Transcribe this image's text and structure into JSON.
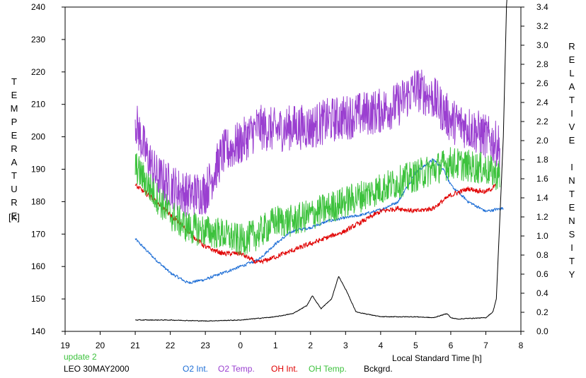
{
  "chart_data": {
    "type": "line",
    "ylabel_left": "TEMPERATURE",
    "ylabel_left_unit": "[K]",
    "ylabel_right": "RELATIVE INTENSITY",
    "xlabel": "Local Standard Time [h]",
    "xlim": [
      19,
      8
    ],
    "x_tick_labels": [
      "19",
      "20",
      "21",
      "22",
      "23",
      "0",
      "1",
      "2",
      "3",
      "4",
      "5",
      "6",
      "7",
      "8"
    ],
    "ylim_left": [
      140,
      240
    ],
    "y_left_ticks": [
      140,
      150,
      160,
      170,
      180,
      190,
      200,
      210,
      220,
      230,
      240
    ],
    "ylim_right": [
      0.0,
      3.4
    ],
    "y_right_tick_labels": [
      "0.0",
      "0.2",
      "0.4",
      "0.6",
      "0.8",
      "1.0",
      "1.2",
      "1.4",
      "1.6",
      "1.8",
      "2.0",
      "2.2",
      "2.4",
      "2.6",
      "2.8",
      "3.0",
      "3.2",
      "3.4"
    ],
    "grid": false,
    "footer": {
      "status": "update 2",
      "site_date": "LEO 30MAY2000"
    },
    "series": [
      {
        "name": "O2 Int.",
        "color": "#1f6fd6",
        "axis": "left",
        "noise": 0.6,
        "x": [
          21.0,
          21.5,
          22.0,
          22.5,
          23.0,
          23.5,
          24.0,
          24.5,
          25.0,
          25.5,
          26.0,
          26.5,
          27.0,
          27.5,
          28.0,
          28.5,
          29.0,
          29.5,
          29.8,
          30.0,
          30.5,
          31.0,
          31.5
        ],
        "y": [
          168.5,
          163,
          158,
          155,
          156,
          158,
          160,
          162,
          167,
          171,
          172,
          174,
          175,
          176,
          177.5,
          180,
          189,
          193,
          190,
          185,
          180,
          177,
          178
        ]
      },
      {
        "name": "O2 Temp.",
        "color": "#9a3fd0",
        "axis": "left",
        "noise": 7,
        "x": [
          21.0,
          21.3,
          21.6,
          22.0,
          22.5,
          23.0,
          23.5,
          24.0,
          24.5,
          25.0,
          25.5,
          26.0,
          26.5,
          27.0,
          27.5,
          28.0,
          28.5,
          29.0,
          29.5,
          30.0,
          30.5,
          31.0,
          31.4
        ],
        "y": [
          205,
          195,
          188,
          185,
          182,
          183,
          195,
          198,
          203,
          202,
          203,
          203,
          205,
          206,
          207,
          208,
          210,
          215,
          212,
          205,
          203,
          200,
          197
        ]
      },
      {
        "name": "OH Int.",
        "color": "#e00000",
        "axis": "left",
        "noise": 1,
        "x": [
          21.0,
          21.5,
          22.0,
          22.5,
          23.0,
          23.5,
          24.0,
          24.5,
          25.0,
          25.5,
          26.0,
          26.5,
          27.0,
          27.5,
          28.0,
          28.5,
          29.0,
          29.5,
          30.0,
          30.5,
          31.0,
          31.3
        ],
        "y": [
          185,
          181,
          176,
          171,
          166,
          164,
          164,
          161,
          163,
          165,
          167,
          169,
          171,
          174,
          177,
          178,
          177,
          178,
          182,
          184,
          183,
          185
        ]
      },
      {
        "name": "OH Temp.",
        "color": "#3dc23d",
        "axis": "left",
        "noise": 5,
        "x": [
          21.0,
          21.5,
          22.0,
          22.5,
          23.0,
          23.5,
          24.0,
          24.5,
          25.0,
          25.5,
          26.0,
          26.5,
          27.0,
          27.5,
          28.0,
          28.5,
          29.0,
          29.5,
          30.0,
          30.5,
          31.0,
          31.4
        ],
        "y": [
          191,
          183,
          176,
          172,
          171,
          170,
          168,
          170,
          174,
          174,
          176,
          178,
          180,
          182,
          184,
          186,
          188,
          190,
          192,
          191,
          190,
          188
        ]
      },
      {
        "name": "Bckgrd.",
        "color": "#000000",
        "axis": "left",
        "noise": 0.15,
        "x": [
          21.0,
          22.0,
          23.0,
          24.0,
          25.0,
          25.5,
          25.9,
          26.05,
          26.3,
          26.6,
          26.8,
          27.0,
          27.3,
          28.0,
          29.0,
          29.5,
          29.9,
          30.0,
          30.2,
          30.5,
          31.0,
          31.2,
          31.3,
          31.4,
          31.5,
          31.6
        ],
        "y": [
          143.5,
          143.5,
          143.2,
          143.5,
          144.5,
          145.5,
          148,
          151,
          147,
          150,
          157,
          153,
          146,
          144.5,
          144.5,
          144.2,
          145.5,
          144.2,
          143.8,
          144,
          144.2,
          146,
          150,
          175,
          200,
          245
        ]
      }
    ]
  }
}
